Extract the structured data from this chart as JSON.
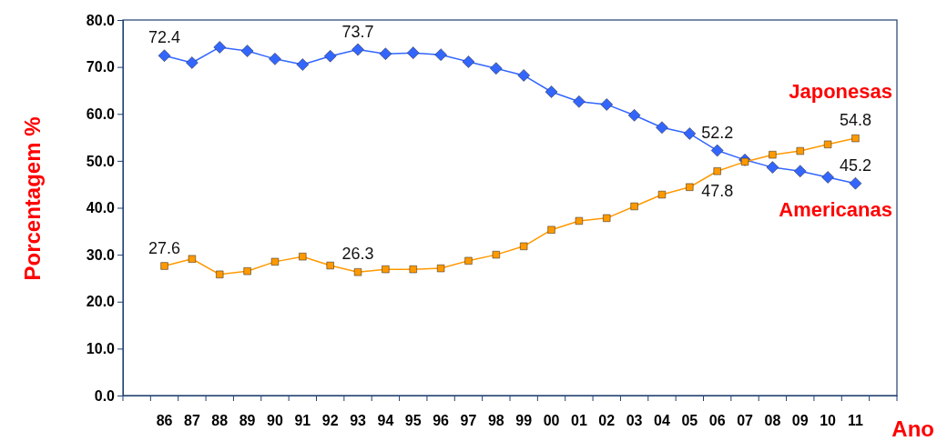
{
  "chart_data": {
    "type": "line",
    "xlabel": "Ano",
    "ylabel": "Porcentagem %",
    "categories": [
      null,
      "86",
      "87",
      "88",
      "89",
      "90",
      "91",
      "92",
      "93",
      "94",
      "95",
      "96",
      "97",
      "98",
      "99",
      "00",
      "01",
      "02",
      "03",
      "04",
      "05",
      "06",
      "07",
      "08",
      "09",
      "10",
      "11",
      null
    ],
    "ylim": [
      0,
      80
    ],
    "yticks": [
      {
        "value": 0,
        "label": "0.0"
      },
      {
        "value": 10,
        "label": "10.0"
      },
      {
        "value": 20,
        "label": "20.0"
      },
      {
        "value": 30,
        "label": "30.0"
      },
      {
        "value": 40,
        "label": "40.0"
      },
      {
        "value": 50,
        "label": "50.0"
      },
      {
        "value": 60,
        "label": "60.0"
      },
      {
        "value": 70,
        "label": "70.0"
      },
      {
        "value": 80,
        "label": "80.0"
      }
    ],
    "grid": false,
    "legend": false,
    "line_style": "solid",
    "series": [
      {
        "name": "Americanas",
        "color": "#3366ff",
        "marker": "diamond",
        "values": [
          null,
          72.4,
          70.9,
          74.2,
          73.4,
          71.7,
          70.5,
          72.3,
          73.7,
          72.8,
          73.0,
          72.6,
          71.1,
          69.7,
          68.2,
          64.7,
          62.6,
          62.0,
          59.7,
          57.1,
          55.8,
          52.2,
          50.2,
          48.6,
          47.8,
          46.5,
          45.2,
          null
        ],
        "value_labels": [
          null,
          "72.4",
          null,
          null,
          null,
          null,
          null,
          null,
          "73.7",
          null,
          null,
          null,
          null,
          null,
          null,
          null,
          null,
          null,
          null,
          null,
          null,
          "52.2",
          null,
          null,
          null,
          null,
          "45.2",
          null
        ]
      },
      {
        "name": "Japonesas",
        "color": "#ff9900",
        "marker": "square",
        "values": [
          null,
          27.6,
          29.1,
          25.8,
          26.5,
          28.5,
          29.6,
          27.7,
          26.3,
          26.9,
          26.9,
          27.1,
          28.7,
          30.0,
          31.8,
          35.3,
          37.2,
          37.8,
          40.3,
          42.8,
          44.4,
          47.8,
          49.8,
          51.3,
          52.1,
          53.5,
          54.8,
          null
        ],
        "value_labels": [
          null,
          "27.6",
          null,
          null,
          null,
          null,
          null,
          null,
          "26.3",
          null,
          null,
          null,
          null,
          null,
          null,
          null,
          null,
          null,
          null,
          null,
          null,
          "47.8",
          null,
          null,
          null,
          null,
          "54.8",
          null
        ]
      }
    ]
  }
}
